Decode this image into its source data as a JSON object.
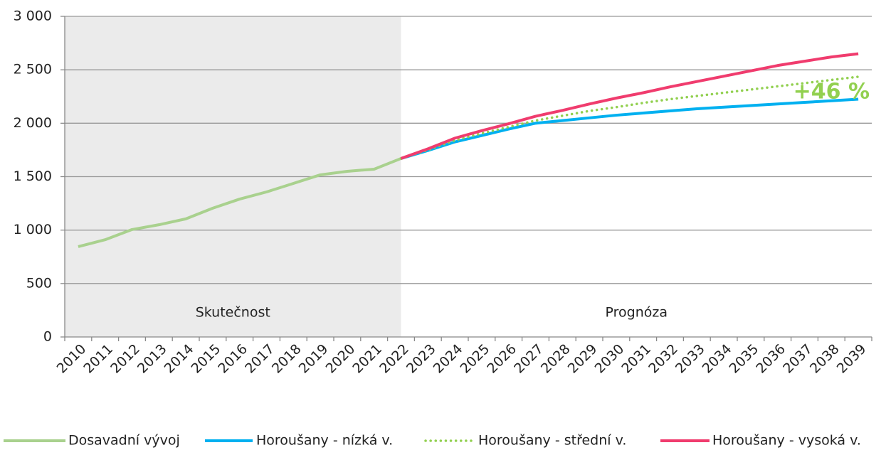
{
  "chart_data": {
    "type": "line",
    "categories": [
      "2010",
      "2011",
      "2012",
      "2013",
      "2014",
      "2015",
      "2016",
      "2017",
      "2018",
      "2019",
      "2020",
      "2021",
      "2022",
      "2023",
      "2024",
      "2025",
      "2026",
      "2027",
      "2028",
      "2029",
      "2030",
      "2031",
      "2032",
      "2033",
      "2034",
      "2035",
      "2036",
      "2037",
      "2038",
      "2039"
    ],
    "series": [
      {
        "name": "Dosavadní vývoj",
        "color": "#a9d18e",
        "values": [
          845,
          910,
          1005,
          1050,
          1105,
          1205,
          1290,
          1357,
          1437,
          1517,
          1550,
          1570,
          1670,
          null,
          null,
          null,
          null,
          null,
          null,
          null,
          null,
          null,
          null,
          null,
          null,
          null,
          null,
          null,
          null,
          null
        ]
      },
      {
        "name": "Horoušany - nízká v.",
        "color": "#00b0f0",
        "values": [
          null,
          null,
          null,
          null,
          null,
          null,
          null,
          null,
          null,
          null,
          null,
          null,
          1670,
          1745,
          1825,
          1885,
          1945,
          2000,
          2025,
          2050,
          2075,
          2095,
          2115,
          2135,
          2150,
          2165,
          2180,
          2195,
          2210,
          2225
        ]
      },
      {
        "name": "Horoušany - střední v.",
        "color": "#92d050",
        "dash": "dotted",
        "values": [
          null,
          null,
          null,
          null,
          null,
          null,
          null,
          null,
          null,
          null,
          null,
          null,
          1670,
          1750,
          1840,
          1905,
          1965,
          2025,
          2070,
          2115,
          2150,
          2190,
          2225,
          2255,
          2285,
          2315,
          2345,
          2375,
          2405,
          2435
        ]
      },
      {
        "name": "Horoušany - vysoká v.",
        "color": "#f03c6e",
        "values": [
          null,
          null,
          null,
          null,
          null,
          null,
          null,
          null,
          null,
          null,
          null,
          null,
          1670,
          1760,
          1860,
          1930,
          1995,
          2065,
          2120,
          2180,
          2235,
          2285,
          2340,
          2390,
          2440,
          2490,
          2540,
          2580,
          2620,
          2650
        ]
      }
    ],
    "ylim": [
      0,
      3000
    ],
    "yticks": [
      0,
      500,
      {
        "value": 1000,
        "label": "1 000"
      },
      {
        "value": 1500,
        "label": "1 500"
      },
      {
        "value": 2000,
        "label": "2 000"
      },
      {
        "value": 2500,
        "label": "2 500"
      },
      {
        "value": 3000,
        "label": "3 000"
      }
    ],
    "grid": true,
    "annotations": [
      "Skutečnost",
      "Prognóza",
      "+46 %"
    ],
    "legend": "bottom"
  }
}
